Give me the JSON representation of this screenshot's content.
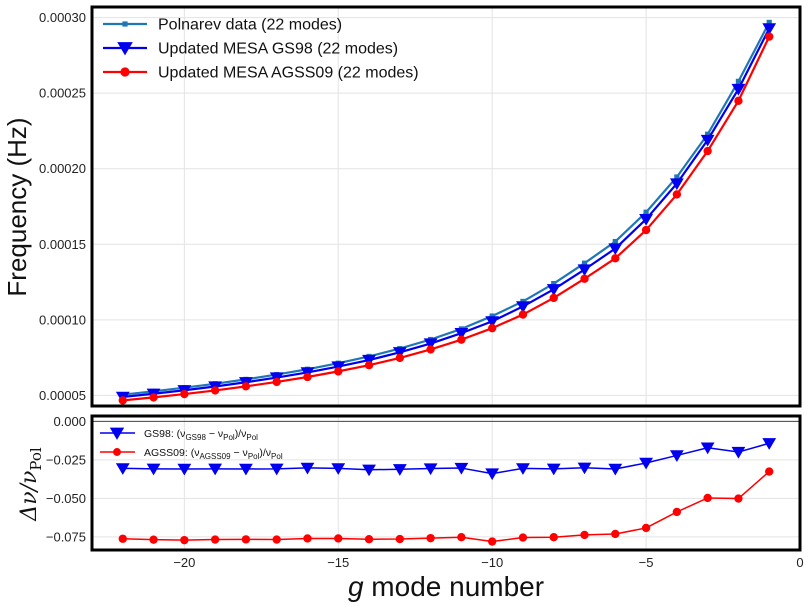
{
  "chart_data": [
    {
      "type": "line",
      "panel": "top",
      "ylabel": "Frequency (Hz)",
      "xlabel": "",
      "xlim": [
        -23,
        0
      ],
      "ylim": [
        4.3e-05,
        0.000307
      ],
      "grid": true,
      "legend_position": "top-left",
      "yticks": [
        5e-05,
        0.0001,
        0.00015,
        0.0002,
        0.00025,
        0.0003
      ],
      "ytick_labels": [
        "0.00005",
        "0.00010",
        "0.00015",
        "0.00020",
        "0.00025",
        "0.00030"
      ],
      "x": [
        -22,
        -21,
        -20,
        -19,
        -18,
        -17,
        -16,
        -15,
        -14,
        -13,
        -12,
        -11,
        -10,
        -9,
        -8,
        -7,
        -6,
        -5,
        -4,
        -3,
        -2,
        -1
      ],
      "series": [
        {
          "name": "Polnarev data (22 modes)",
          "color": "#1f77b4",
          "marker": "square",
          "values": [
            5.05e-05,
            5.27e-05,
            5.51e-05,
            5.77e-05,
            6.06e-05,
            6.38e-05,
            6.73e-05,
            7.13e-05,
            7.58e-05,
            8.1e-05,
            8.7e-05,
            9.4e-05,
            0.0001025,
            0.0001122,
            0.000124,
            0.0001375,
            0.0001518,
            0.0001712,
            0.0001945,
            0.0002228,
            0.0002578,
            0.0002968
          ]
        },
        {
          "name": "Updated MESA GS98 (22 modes)",
          "color": "#0000ee",
          "marker": "triangle-down",
          "values": [
            4.9e-05,
            5.11e-05,
            5.34e-05,
            5.59e-05,
            5.87e-05,
            6.18e-05,
            6.52e-05,
            6.91e-05,
            7.34e-05,
            7.85e-05,
            8.43e-05,
            9.12e-05,
            9.9e-05,
            0.0001089,
            0.0001202,
            0.0001333,
            0.0001472,
            0.0001666,
            0.0001902,
            0.000219,
            0.0002527,
            0.0002928
          ]
        },
        {
          "name": "Updated MESA AGSS09 (22 modes)",
          "color": "#ff0000",
          "marker": "circle",
          "values": [
            4.67e-05,
            4.87e-05,
            5.09e-05,
            5.33e-05,
            5.6e-05,
            5.89e-05,
            6.22e-05,
            6.59e-05,
            7e-05,
            7.48e-05,
            8.04e-05,
            8.69e-05,
            9.45e-05,
            0.0001035,
            0.0001145,
            0.0001272,
            0.0001407,
            0.0001594,
            0.000183,
            0.0002117,
            0.0002449,
            0.0002874
          ]
        }
      ]
    },
    {
      "type": "line",
      "panel": "bottom",
      "ylabel": "Δν/ν",
      "ylabel_sub": "Pol",
      "xlabel_prefix": "g",
      "xlabel": " mode number",
      "xlim": [
        -23,
        0
      ],
      "ylim": [
        -0.0835,
        0.0035
      ],
      "grid": true,
      "legend_position": "top-left",
      "xticks": [
        -20,
        -15,
        -10,
        -5,
        0
      ],
      "xtick_labels": [
        "−20",
        "−15",
        "−10",
        "−5",
        "0"
      ],
      "yticks": [
        0.0,
        -0.025,
        -0.05,
        -0.075
      ],
      "ytick_labels": [
        "0.000",
        "−0.025",
        "−0.050",
        "−0.075"
      ],
      "x": [
        -22,
        -21,
        -20,
        -19,
        -18,
        -17,
        -16,
        -15,
        -14,
        -13,
        -12,
        -11,
        -10,
        -9,
        -8,
        -7,
        -6,
        -5,
        -4,
        -3,
        -2,
        -1
      ],
      "series": [
        {
          "name": "GS98: (ν_GS98 − ν_Pol)/ν_Pol",
          "legend": {
            "prefix": "GS98: (ν",
            "sub1": "GS98",
            "mid": " − ν",
            "sub2": "Pol",
            "mid2": ")/ν",
            "sub3": "Pol"
          },
          "color": "#0000ee",
          "marker": "triangle-down",
          "values": [
            -0.0305,
            -0.0308,
            -0.0309,
            -0.0308,
            -0.0309,
            -0.0308,
            -0.0302,
            -0.0305,
            -0.0314,
            -0.0311,
            -0.0306,
            -0.0303,
            -0.0339,
            -0.0305,
            -0.0308,
            -0.0301,
            -0.0309,
            -0.027,
            -0.0221,
            -0.0171,
            -0.0199,
            -0.0142
          ]
        },
        {
          "name": "AGSS09: (ν_AGSS09 − ν_Pol)/ν_Pol",
          "legend": {
            "prefix": "AGSS09: (ν",
            "sub1": "AGSS09",
            "mid": " − ν",
            "sub2": "Pol",
            "mid2": ")/ν",
            "sub3": "Pol"
          },
          "color": "#ff0000",
          "marker": "circle",
          "values": [
            -0.0762,
            -0.0768,
            -0.0771,
            -0.0767,
            -0.0766,
            -0.0767,
            -0.076,
            -0.076,
            -0.0765,
            -0.0764,
            -0.0758,
            -0.0752,
            -0.078,
            -0.0754,
            -0.0752,
            -0.0737,
            -0.0731,
            -0.0692,
            -0.0588,
            -0.0497,
            -0.0501,
            -0.0326
          ]
        }
      ]
    }
  ]
}
